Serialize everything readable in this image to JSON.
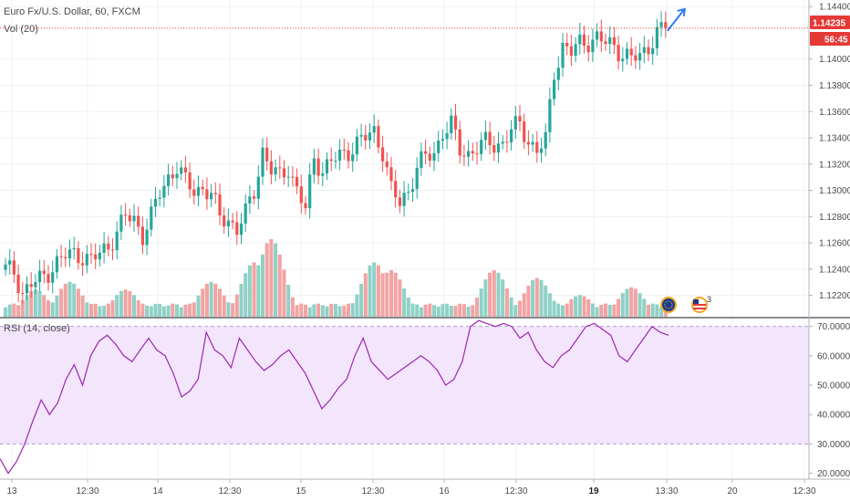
{
  "header": {
    "title": "Euro Fx/U.S. Dollar, 60, FXCM",
    "volume_label": "Vol (20)",
    "rsi_label": "RSI (14, close)"
  },
  "price_axis": {
    "current_price": "1.14235",
    "countdown": "56:45",
    "ticks": [
      "1.14400",
      "1.14000",
      "1.13800",
      "1.13600",
      "1.13400",
      "1.13200",
      "1.13000",
      "1.12800",
      "1.12600",
      "1.12400",
      "1.12200"
    ]
  },
  "rsi_axis": {
    "ticks": [
      "70.0000",
      "60.0000",
      "50.0000",
      "40.0000",
      "30.0000",
      "20.0000"
    ]
  },
  "time_axis": {
    "labels": [
      "13",
      "12:30",
      "14",
      "12:30",
      "15",
      "12:30",
      "16",
      "12:30",
      "19",
      "13:30",
      "20",
      "12:30"
    ],
    "bold_label": "19"
  },
  "events": {
    "us_badge_count": "3"
  },
  "colors": {
    "up": "#26a69a",
    "down": "#ef5350",
    "vol_up": "#8fd1c6",
    "vol_down": "#f3a3a3",
    "rsi_line": "#9c27b0",
    "rsi_band": "#f3e5fb",
    "price_line": "#e53935",
    "arrow": "#2979ff"
  },
  "chart_data": [
    {
      "type": "candlestick",
      "title": "Euro Fx/U.S. Dollar, 60, FXCM",
      "ylim": [
        1.121,
        1.1445
      ],
      "last_price": 1.14235,
      "anchors": [
        [
          0,
          1.124
        ],
        [
          2,
          1.1238
        ],
        [
          4,
          1.1222
        ],
        [
          6,
          1.1228
        ],
        [
          8,
          1.1232
        ],
        [
          10,
          1.1238
        ],
        [
          12,
          1.1245
        ],
        [
          14,
          1.125
        ],
        [
          16,
          1.1252
        ],
        [
          18,
          1.125
        ],
        [
          20,
          1.1246
        ],
        [
          22,
          1.1252
        ],
        [
          24,
          1.1258
        ],
        [
          26,
          1.1268
        ],
        [
          28,
          1.128
        ],
        [
          30,
          1.1278
        ],
        [
          32,
          1.1266
        ],
        [
          34,
          1.128
        ],
        [
          36,
          1.1298
        ],
        [
          38,
          1.131
        ],
        [
          40,
          1.1318
        ],
        [
          42,
          1.1306
        ],
        [
          44,
          1.13
        ],
        [
          46,
          1.1302
        ],
        [
          48,
          1.1296
        ],
        [
          50,
          1.128
        ],
        [
          52,
          1.1278
        ],
        [
          54,
          1.127
        ],
        [
          56,
          1.1282
        ],
        [
          58,
          1.13
        ],
        [
          60,
          1.133
        ],
        [
          62,
          1.1315
        ],
        [
          64,
          1.131
        ],
        [
          66,
          1.1318
        ],
        [
          68,
          1.13
        ],
        [
          70,
          1.1285
        ],
        [
          72,
          1.1325
        ],
        [
          74,
          1.1315
        ],
        [
          76,
          1.1322
        ],
        [
          78,
          1.1326
        ],
        [
          80,
          1.133
        ],
        [
          82,
          1.1336
        ],
        [
          84,
          1.134
        ],
        [
          86,
          1.1345
        ],
        [
          88,
          1.133
        ],
        [
          90,
          1.13
        ],
        [
          92,
          1.129
        ],
        [
          94,
          1.13
        ],
        [
          96,
          1.1318
        ],
        [
          98,
          1.1325
        ],
        [
          100,
          1.1328
        ],
        [
          102,
          1.1345
        ],
        [
          104,
          1.135
        ],
        [
          106,
          1.133
        ],
        [
          108,
          1.1328
        ],
        [
          110,
          1.1333
        ],
        [
          112,
          1.1336
        ],
        [
          114,
          1.1335
        ],
        [
          116,
          1.1336
        ],
        [
          118,
          1.1346
        ],
        [
          120,
          1.135
        ],
        [
          122,
          1.1338
        ],
        [
          124,
          1.133
        ],
        [
          126,
          1.1338
        ],
        [
          128,
          1.139
        ],
        [
          130,
          1.141
        ],
        [
          132,
          1.1405
        ],
        [
          134,
          1.1412
        ],
        [
          136,
          1.1414
        ],
        [
          138,
          1.1416
        ],
        [
          140,
          1.1412
        ],
        [
          142,
          1.141
        ],
        [
          144,
          1.1404
        ],
        [
          146,
          1.14
        ],
        [
          148,
          1.1402
        ],
        [
          150,
          1.141
        ],
        [
          152,
          1.142
        ],
        [
          154,
          1.14235
        ]
      ],
      "volume_ylim": [
        0,
        1
      ],
      "volume_bursts": [
        [
          7,
          0.35
        ],
        [
          15,
          0.45
        ],
        [
          28,
          0.35
        ],
        [
          48,
          0.45
        ],
        [
          58,
          0.7
        ],
        [
          62,
          1.0
        ],
        [
          86,
          0.7
        ],
        [
          90,
          0.6
        ],
        [
          112,
          0.22
        ],
        [
          114,
          0.6
        ],
        [
          124,
          0.5
        ],
        [
          134,
          0.28
        ],
        [
          146,
          0.38
        ]
      ]
    },
    {
      "type": "line",
      "title": "RSI (14, close)",
      "ylim": [
        18,
        73
      ],
      "values": [
        25,
        20,
        24,
        30,
        38,
        45,
        40,
        44,
        52,
        57,
        50,
        60,
        65,
        67,
        64,
        60,
        58,
        62,
        66,
        62,
        60,
        54,
        46,
        48,
        52,
        68,
        62,
        60,
        56,
        66,
        62,
        58,
        55,
        57,
        60,
        62,
        58,
        54,
        48,
        42,
        45,
        49,
        52,
        60,
        66,
        58,
        55,
        52,
        54,
        56,
        58,
        60,
        58,
        55,
        50,
        52,
        58,
        70,
        72,
        71,
        70,
        71,
        70,
        66,
        68,
        62,
        58,
        56,
        60,
        62,
        66,
        70,
        71,
        69,
        67,
        60,
        58,
        62,
        66,
        70,
        68,
        67
      ]
    }
  ]
}
